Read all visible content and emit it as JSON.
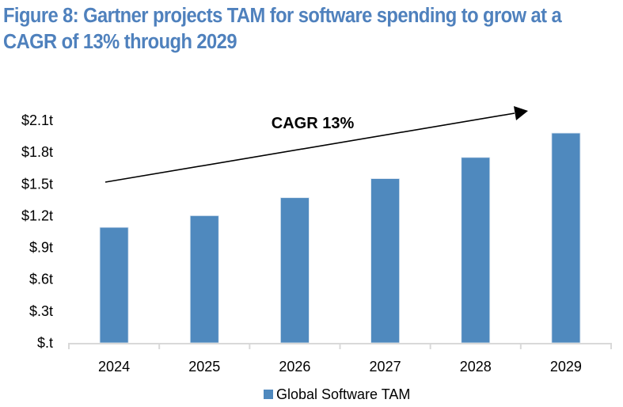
{
  "title_line1": "Figure 8: Gartner projects TAM for software spending to grow at a",
  "title_line2": "CAGR of 13% through 2029",
  "colors": {
    "title": "#4F81BD",
    "bar": "#4F89BE",
    "axis": "#D9D9D9",
    "arrow": "#000000"
  },
  "chart_data": {
    "type": "bar",
    "title": "Figure 8: Gartner projects TAM for software spending to grow at a CAGR of 13% through 2029",
    "categories": [
      "2024",
      "2025",
      "2026",
      "2027",
      "2028",
      "2029"
    ],
    "series": [
      {
        "name": "Global Software TAM",
        "values": [
          1.09,
          1.2,
          1.37,
          1.55,
          1.75,
          1.98
        ]
      }
    ],
    "unit": "trillion USD",
    "xlabel": "",
    "ylabel": "",
    "ylim": [
      0,
      2.1
    ],
    "yticks": [
      0,
      0.3,
      0.6,
      0.9,
      1.2,
      1.5,
      1.8,
      2.1
    ],
    "ytick_labels": [
      "$.t",
      "$.3t",
      "$.6t",
      "$.9t",
      "$1.2t",
      "$1.5t",
      "$1.8t",
      "$2.1t"
    ],
    "grid": false,
    "legend": {
      "position": "bottom",
      "entries": [
        "Global Software TAM"
      ]
    },
    "annotations": [
      {
        "type": "arrow",
        "text": "CAGR 13%",
        "direction": "upward-right trend from 2024 to 2029"
      }
    ]
  }
}
